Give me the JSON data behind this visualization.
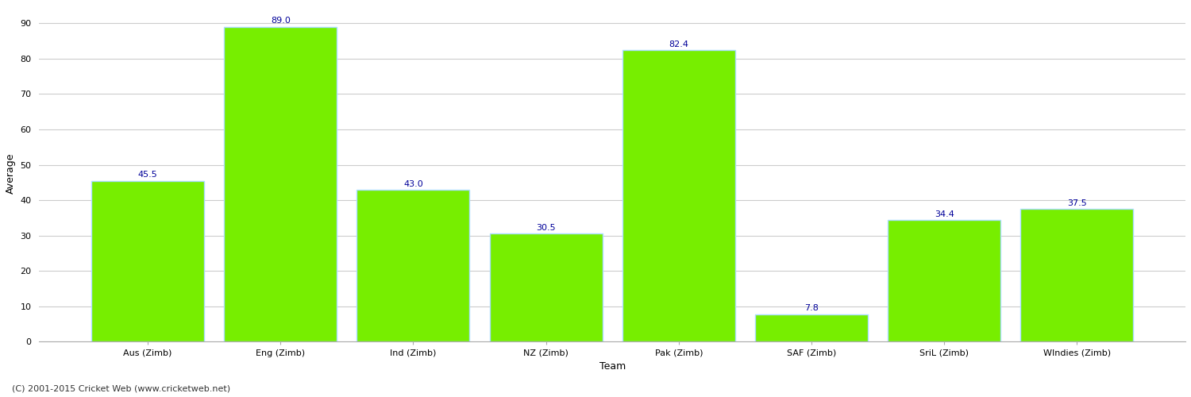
{
  "categories": [
    "Aus (Zimb)",
    "Eng (Zimb)",
    "Ind (Zimb)",
    "NZ (Zimb)",
    "Pak (Zimb)",
    "SAF (Zimb)",
    "SriL (Zimb)",
    "WIndies (Zimb)"
  ],
  "values": [
    45.5,
    89.0,
    43.0,
    30.5,
    82.4,
    7.8,
    34.4,
    37.5
  ],
  "bar_color": "#77ee00",
  "bar_edge_color": "#aaddff",
  "label_color": "#000099",
  "xlabel": "Team",
  "ylabel": "Average",
  "ylim": [
    0,
    95
  ],
  "yticks": [
    0,
    10,
    20,
    30,
    40,
    50,
    60,
    70,
    80,
    90
  ],
  "grid_color": "#cccccc",
  "background_color": "#ffffff",
  "footer_text": "(C) 2001-2015 Cricket Web (www.cricketweb.net)",
  "axis_label_fontsize": 9,
  "tick_fontsize": 8,
  "label_fontsize": 8,
  "footer_fontsize": 8
}
